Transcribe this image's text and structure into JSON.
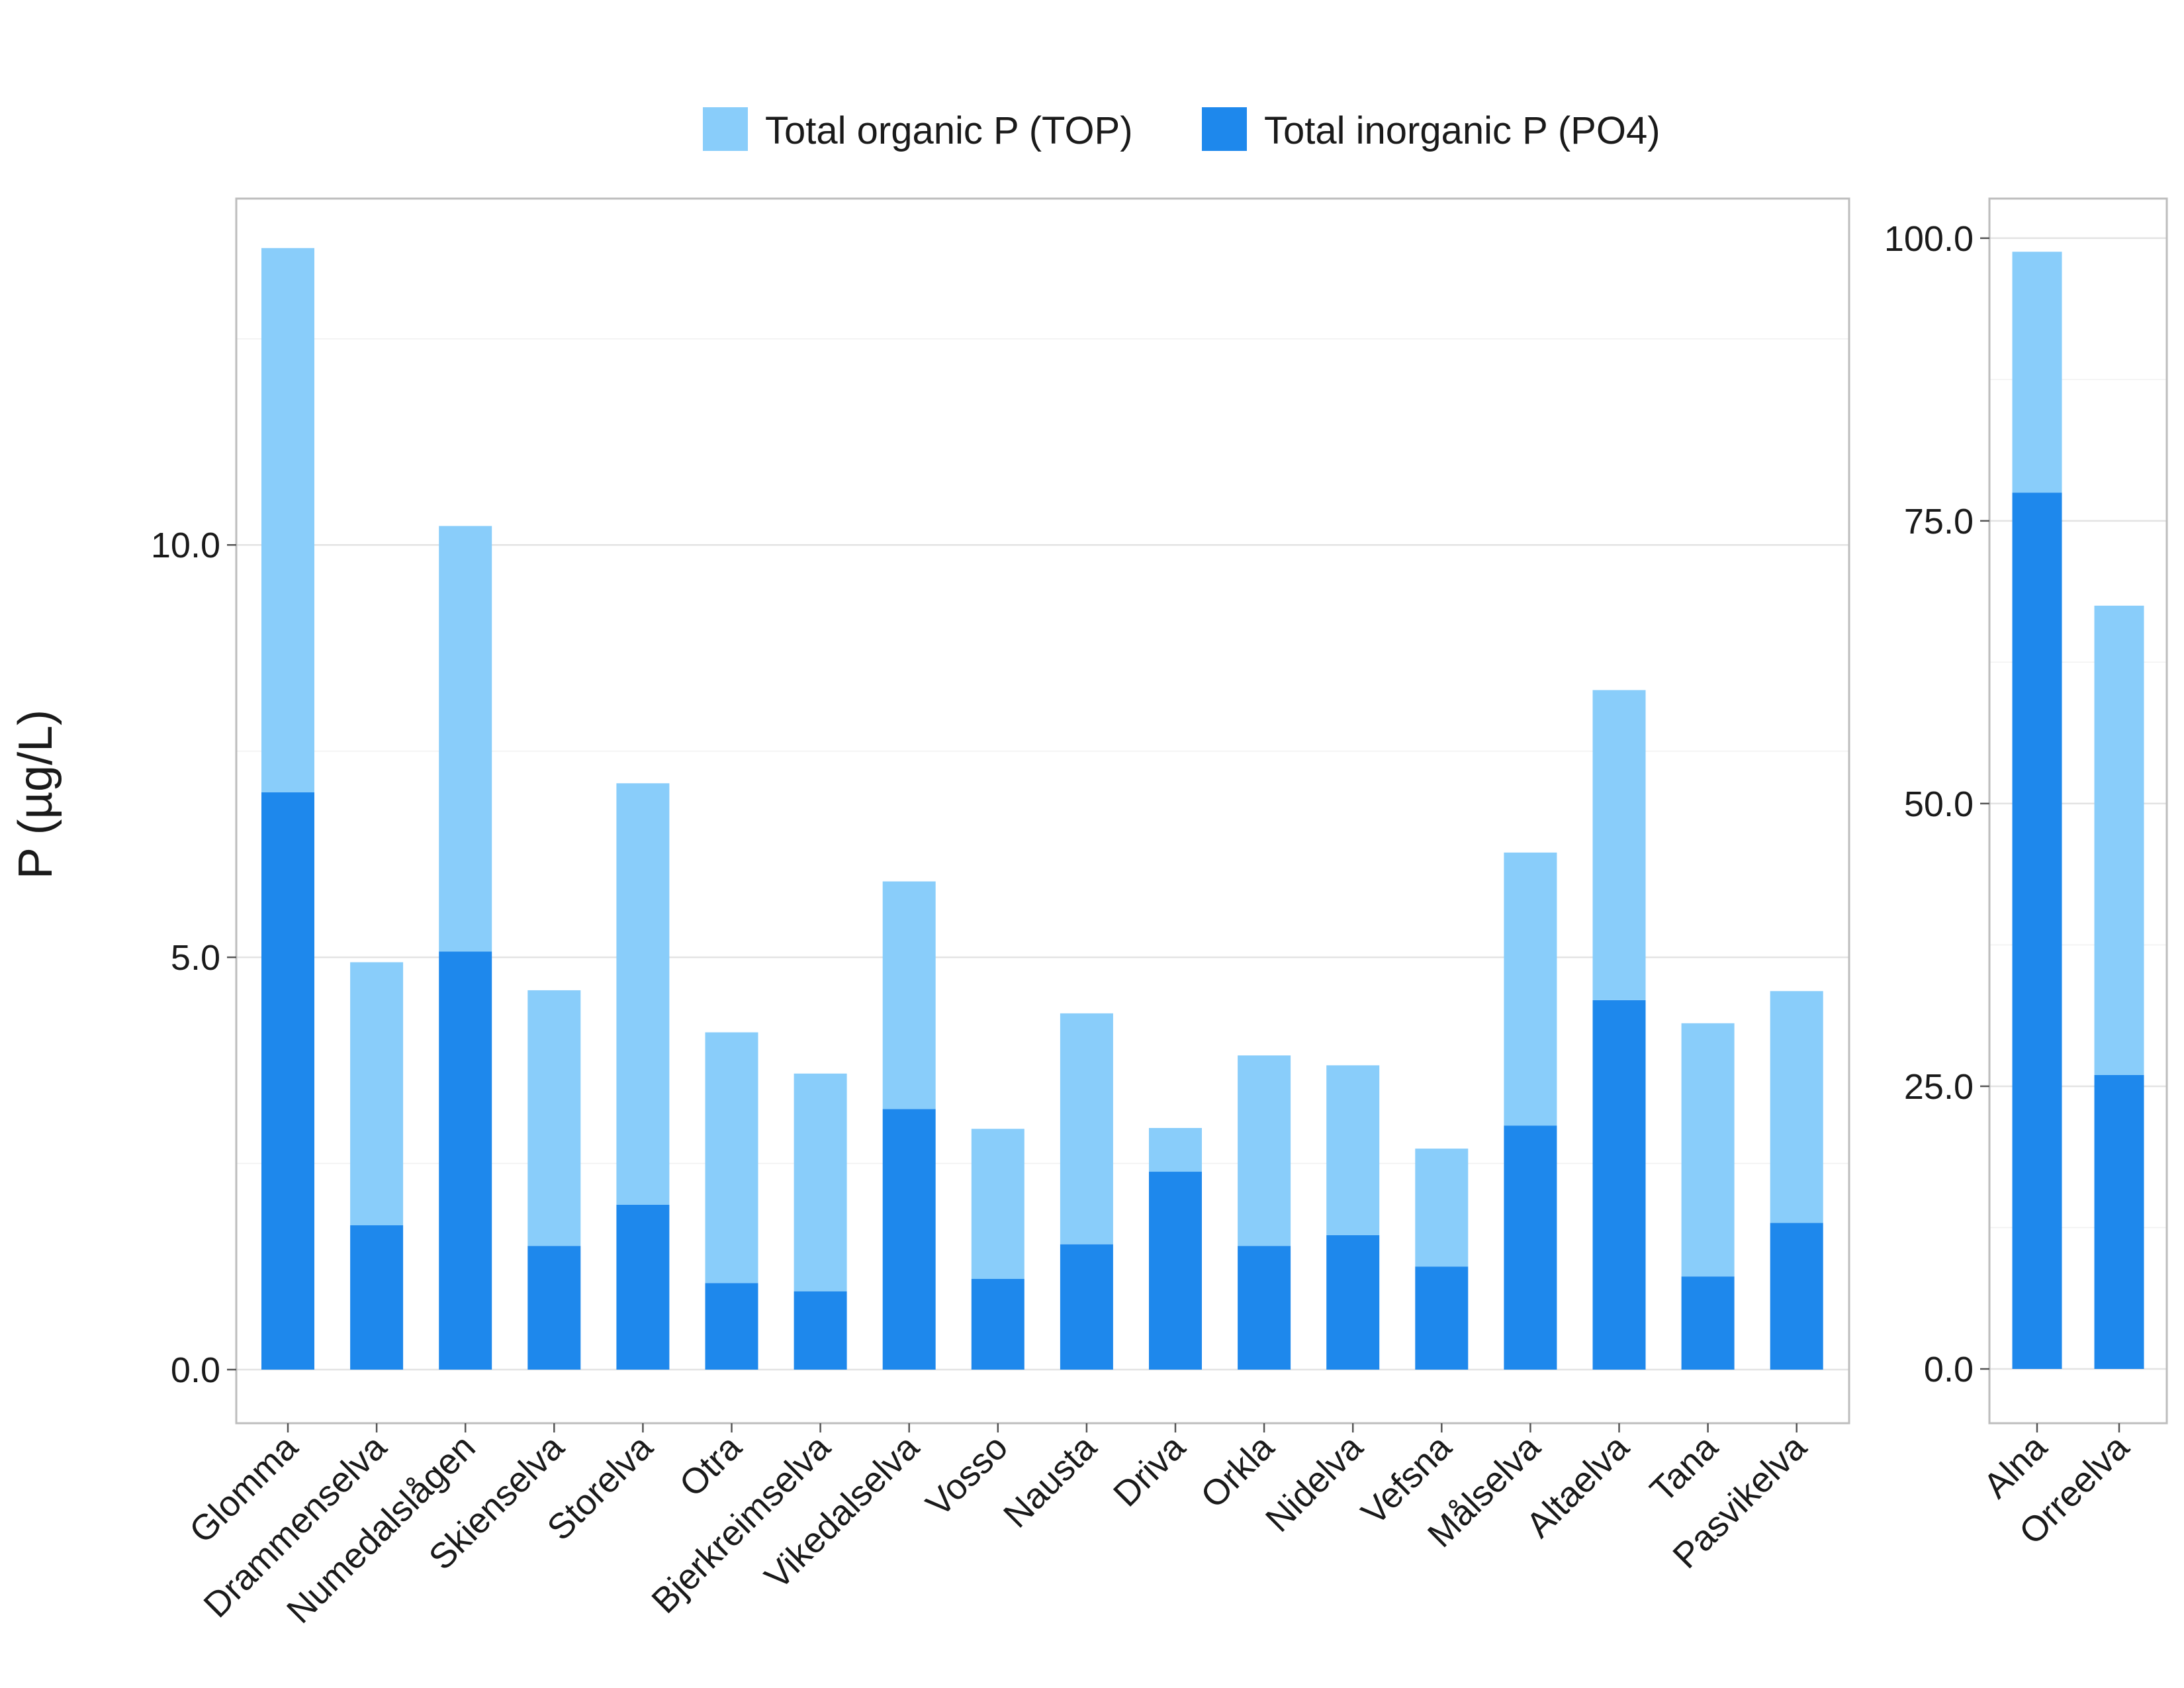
{
  "chart_data": [
    {
      "type": "bar",
      "stacked": true,
      "ylabel": "P (µg/L)",
      "ylim": [
        -0.65,
        14.2
      ],
      "yticks": [
        "0.0",
        "5.0",
        "10.0"
      ],
      "ytick_values": [
        0,
        5,
        10
      ],
      "grid": true,
      "categories": [
        "Glomma",
        "Drammenselva",
        "Numedalslågen",
        "Skienselva",
        "Storelva",
        "Otra",
        "Bjerkreimselva",
        "Vikedalselva",
        "Vosso",
        "Nausta",
        "Driva",
        "Orkla",
        "Nidelva",
        "Vefsna",
        "Målselva",
        "Altaelva",
        "Tana",
        "Pasvikelva"
      ],
      "series": [
        {
          "name": "Total inorganic P (PO4)",
          "color": "#1e88ec",
          "values": [
            7.0,
            1.75,
            5.07,
            1.5,
            2.0,
            1.05,
            0.95,
            3.16,
            1.1,
            1.52,
            2.4,
            1.5,
            1.63,
            1.25,
            2.96,
            4.48,
            1.13,
            1.78
          ]
        },
        {
          "name": "Total organic P (TOP)",
          "color": "#89cdfa",
          "values": [
            6.6,
            3.19,
            5.16,
            3.1,
            5.11,
            3.04,
            2.64,
            2.76,
            1.82,
            2.8,
            0.53,
            2.31,
            2.06,
            1.43,
            3.31,
            3.76,
            3.07,
            2.81
          ]
        }
      ]
    },
    {
      "type": "bar",
      "stacked": true,
      "ylim": [
        -4.8,
        103.5
      ],
      "yticks": [
        "0.0",
        "25.0",
        "50.0",
        "75.0",
        "100.0"
      ],
      "ytick_values": [
        0,
        25,
        50,
        75,
        100
      ],
      "grid": true,
      "categories": [
        "Alna",
        "Orreelva"
      ],
      "series": [
        {
          "name": "Total inorganic P (PO4)",
          "color": "#1e88ec",
          "values": [
            77.5,
            26.0
          ]
        },
        {
          "name": "Total organic P (TOP)",
          "color": "#89cdfa",
          "values": [
            21.3,
            41.5
          ]
        }
      ]
    }
  ],
  "legend": {
    "placement": "top",
    "items": [
      {
        "label": "Total organic P (TOP)",
        "color": "#89cdfa"
      },
      {
        "label": "Total inorganic P (PO4)",
        "color": "#1e88ec"
      }
    ]
  }
}
